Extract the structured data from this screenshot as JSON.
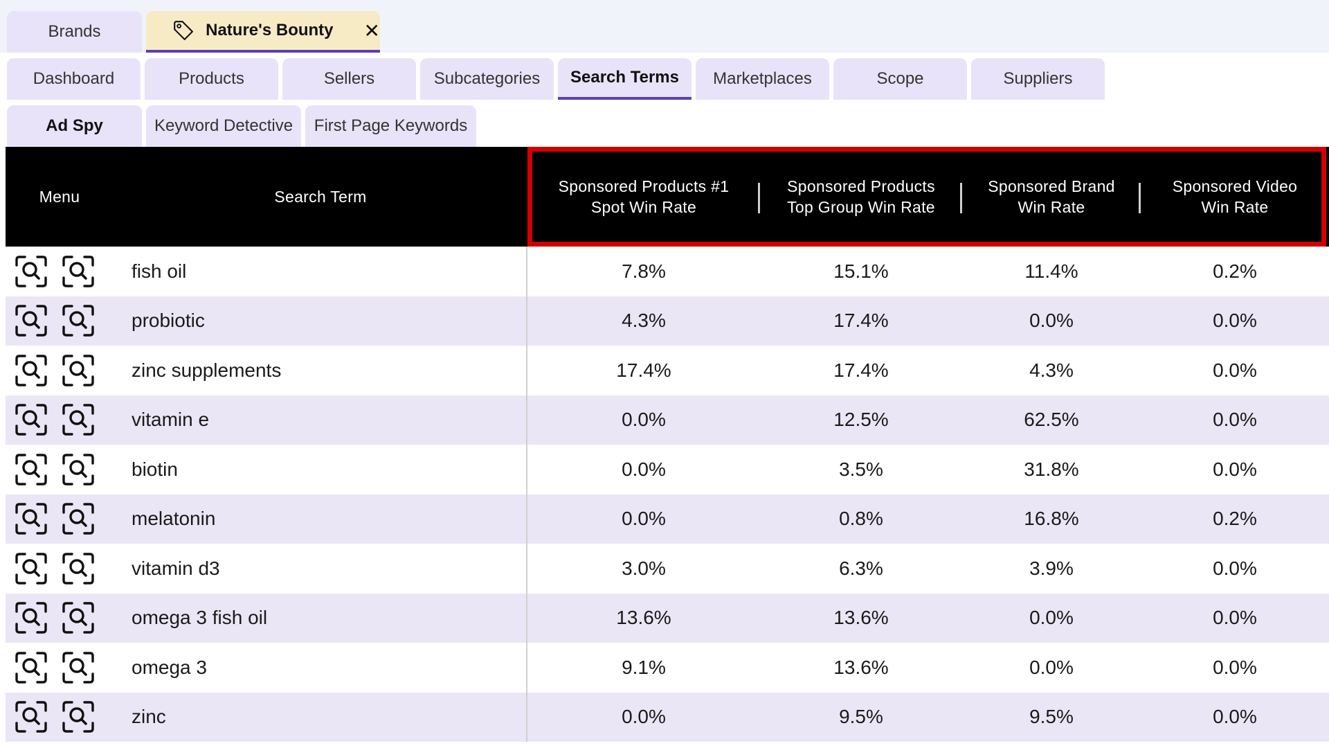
{
  "brand_tabs": {
    "brands_label": "Brands",
    "open_brand_label": "Nature's Bounty",
    "close_glyph": "✕"
  },
  "nav_tabs": [
    {
      "label": "Dashboard"
    },
    {
      "label": "Products"
    },
    {
      "label": "Sellers"
    },
    {
      "label": "Subcategories"
    },
    {
      "label": "Search Terms"
    },
    {
      "label": "Marketplaces"
    },
    {
      "label": "Scope"
    },
    {
      "label": "Suppliers"
    }
  ],
  "sub_tabs": [
    {
      "label": "Ad Spy"
    },
    {
      "label": "Keyword Detective"
    },
    {
      "label": "First Page Keywords"
    }
  ],
  "table": {
    "headers": {
      "menu": "Menu",
      "search_term": "Search Term",
      "sp1_line1": "Sponsored Products #1",
      "sp1_line2": "Spot Win Rate",
      "sptg_line1": "Sponsored Products",
      "sptg_line2": "Top Group Win Rate",
      "sb_line1": "Sponsored Brand",
      "sb_line2": "Win Rate",
      "sv_line1": "Sponsored Video",
      "sv_line2": "Win Rate"
    },
    "rows": [
      {
        "term": "fish oil",
        "sp1": "7.8%",
        "sptg": "15.1%",
        "sb": "11.4%",
        "sv": "0.2%"
      },
      {
        "term": "probiotic",
        "sp1": "4.3%",
        "sptg": "17.4%",
        "sb": "0.0%",
        "sv": "0.0%"
      },
      {
        "term": "zinc supplements",
        "sp1": "17.4%",
        "sptg": "17.4%",
        "sb": "4.3%",
        "sv": "0.0%"
      },
      {
        "term": "vitamin e",
        "sp1": "0.0%",
        "sptg": "12.5%",
        "sb": "62.5%",
        "sv": "0.0%"
      },
      {
        "term": "biotin",
        "sp1": "0.0%",
        "sptg": "3.5%",
        "sb": "31.8%",
        "sv": "0.0%"
      },
      {
        "term": "melatonin",
        "sp1": "0.0%",
        "sptg": "0.8%",
        "sb": "16.8%",
        "sv": "0.2%"
      },
      {
        "term": "vitamin d3",
        "sp1": "3.0%",
        "sptg": "6.3%",
        "sb": "3.9%",
        "sv": "0.0%"
      },
      {
        "term": "omega 3 fish oil",
        "sp1": "13.6%",
        "sptg": "13.6%",
        "sb": "0.0%",
        "sv": "0.0%"
      },
      {
        "term": "omega 3",
        "sp1": "9.1%",
        "sptg": "13.6%",
        "sb": "0.0%",
        "sv": "0.0%"
      },
      {
        "term": "zinc",
        "sp1": "0.0%",
        "sptg": "9.5%",
        "sb": "9.5%",
        "sv": "0.0%"
      }
    ]
  },
  "colors": {
    "tab_bg": "#e8e3f8",
    "active_underline": "#5b3fb3",
    "open_brand_bg": "#f7ebc6",
    "header_bg": "#000000",
    "highlight_border": "#d20000",
    "alt_row_bg": "#ebe6f5"
  },
  "icons": [
    "tag-icon",
    "close-icon",
    "search-scan-icon"
  ]
}
